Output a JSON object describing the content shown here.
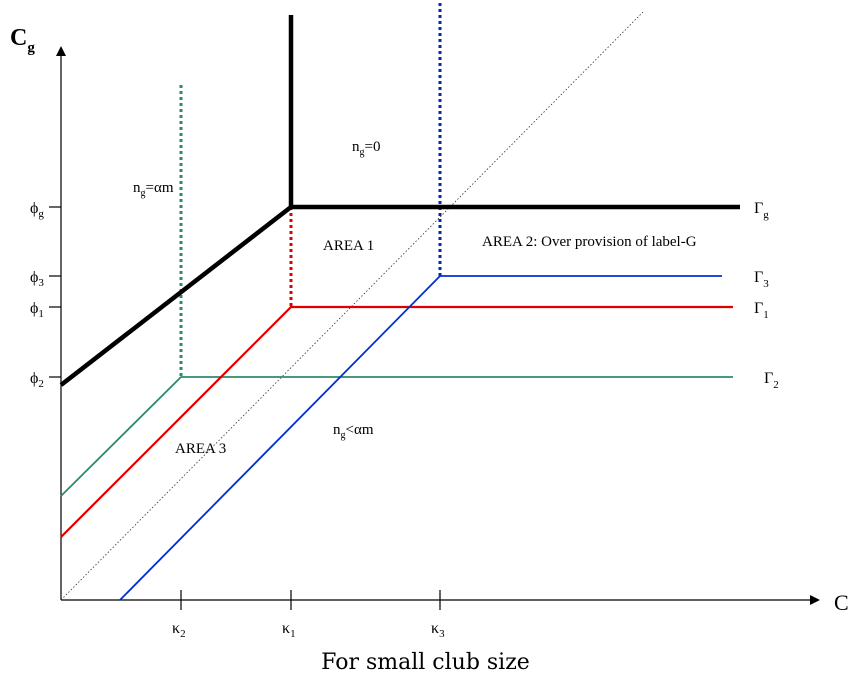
{
  "axes": {
    "y_label": {
      "main": "C",
      "sub": "g"
    },
    "x_label": "C"
  },
  "y_ticks": [
    {
      "main": "ϕ",
      "sub": "g"
    },
    {
      "main": "ϕ",
      "sub": "3"
    },
    {
      "main": "ϕ",
      "sub": "1"
    },
    {
      "main": "ϕ",
      "sub": "2"
    }
  ],
  "x_ticks": [
    {
      "main": "κ",
      "sub": "2"
    },
    {
      "main": "κ",
      "sub": "1"
    },
    {
      "main": "κ",
      "sub": "3"
    }
  ],
  "curve_labels": [
    {
      "main": "Γ",
      "sub": "g"
    },
    {
      "main": "Γ",
      "sub": "3"
    },
    {
      "main": "Γ",
      "sub": "1"
    },
    {
      "main": "Γ",
      "sub": "2"
    }
  ],
  "region_labels": {
    "ng_zero": {
      "pre": "n",
      "sub": "g",
      "post": "=0"
    },
    "ng_alpha_m": {
      "pre": "n",
      "sub": "g",
      "post": "=αm"
    },
    "ng_less_alpha_m": {
      "pre": "n",
      "sub": "g",
      "post": "<αm"
    },
    "area1": "AREA 1",
    "area2": "AREA 2: Over provision of label-G",
    "area3": "AREA 3"
  },
  "caption": "For small club size",
  "colors": {
    "gamma_g": "#000000",
    "gamma_1": "#e00000",
    "gamma_2": "#2e8b6b",
    "gamma_3": "#0030d0",
    "kappa2_dash": "#2e8b6b",
    "kappa1_dash": "#e00000",
    "kappa3_dash": "#002aa8",
    "diagonal": "#333333"
  }
}
